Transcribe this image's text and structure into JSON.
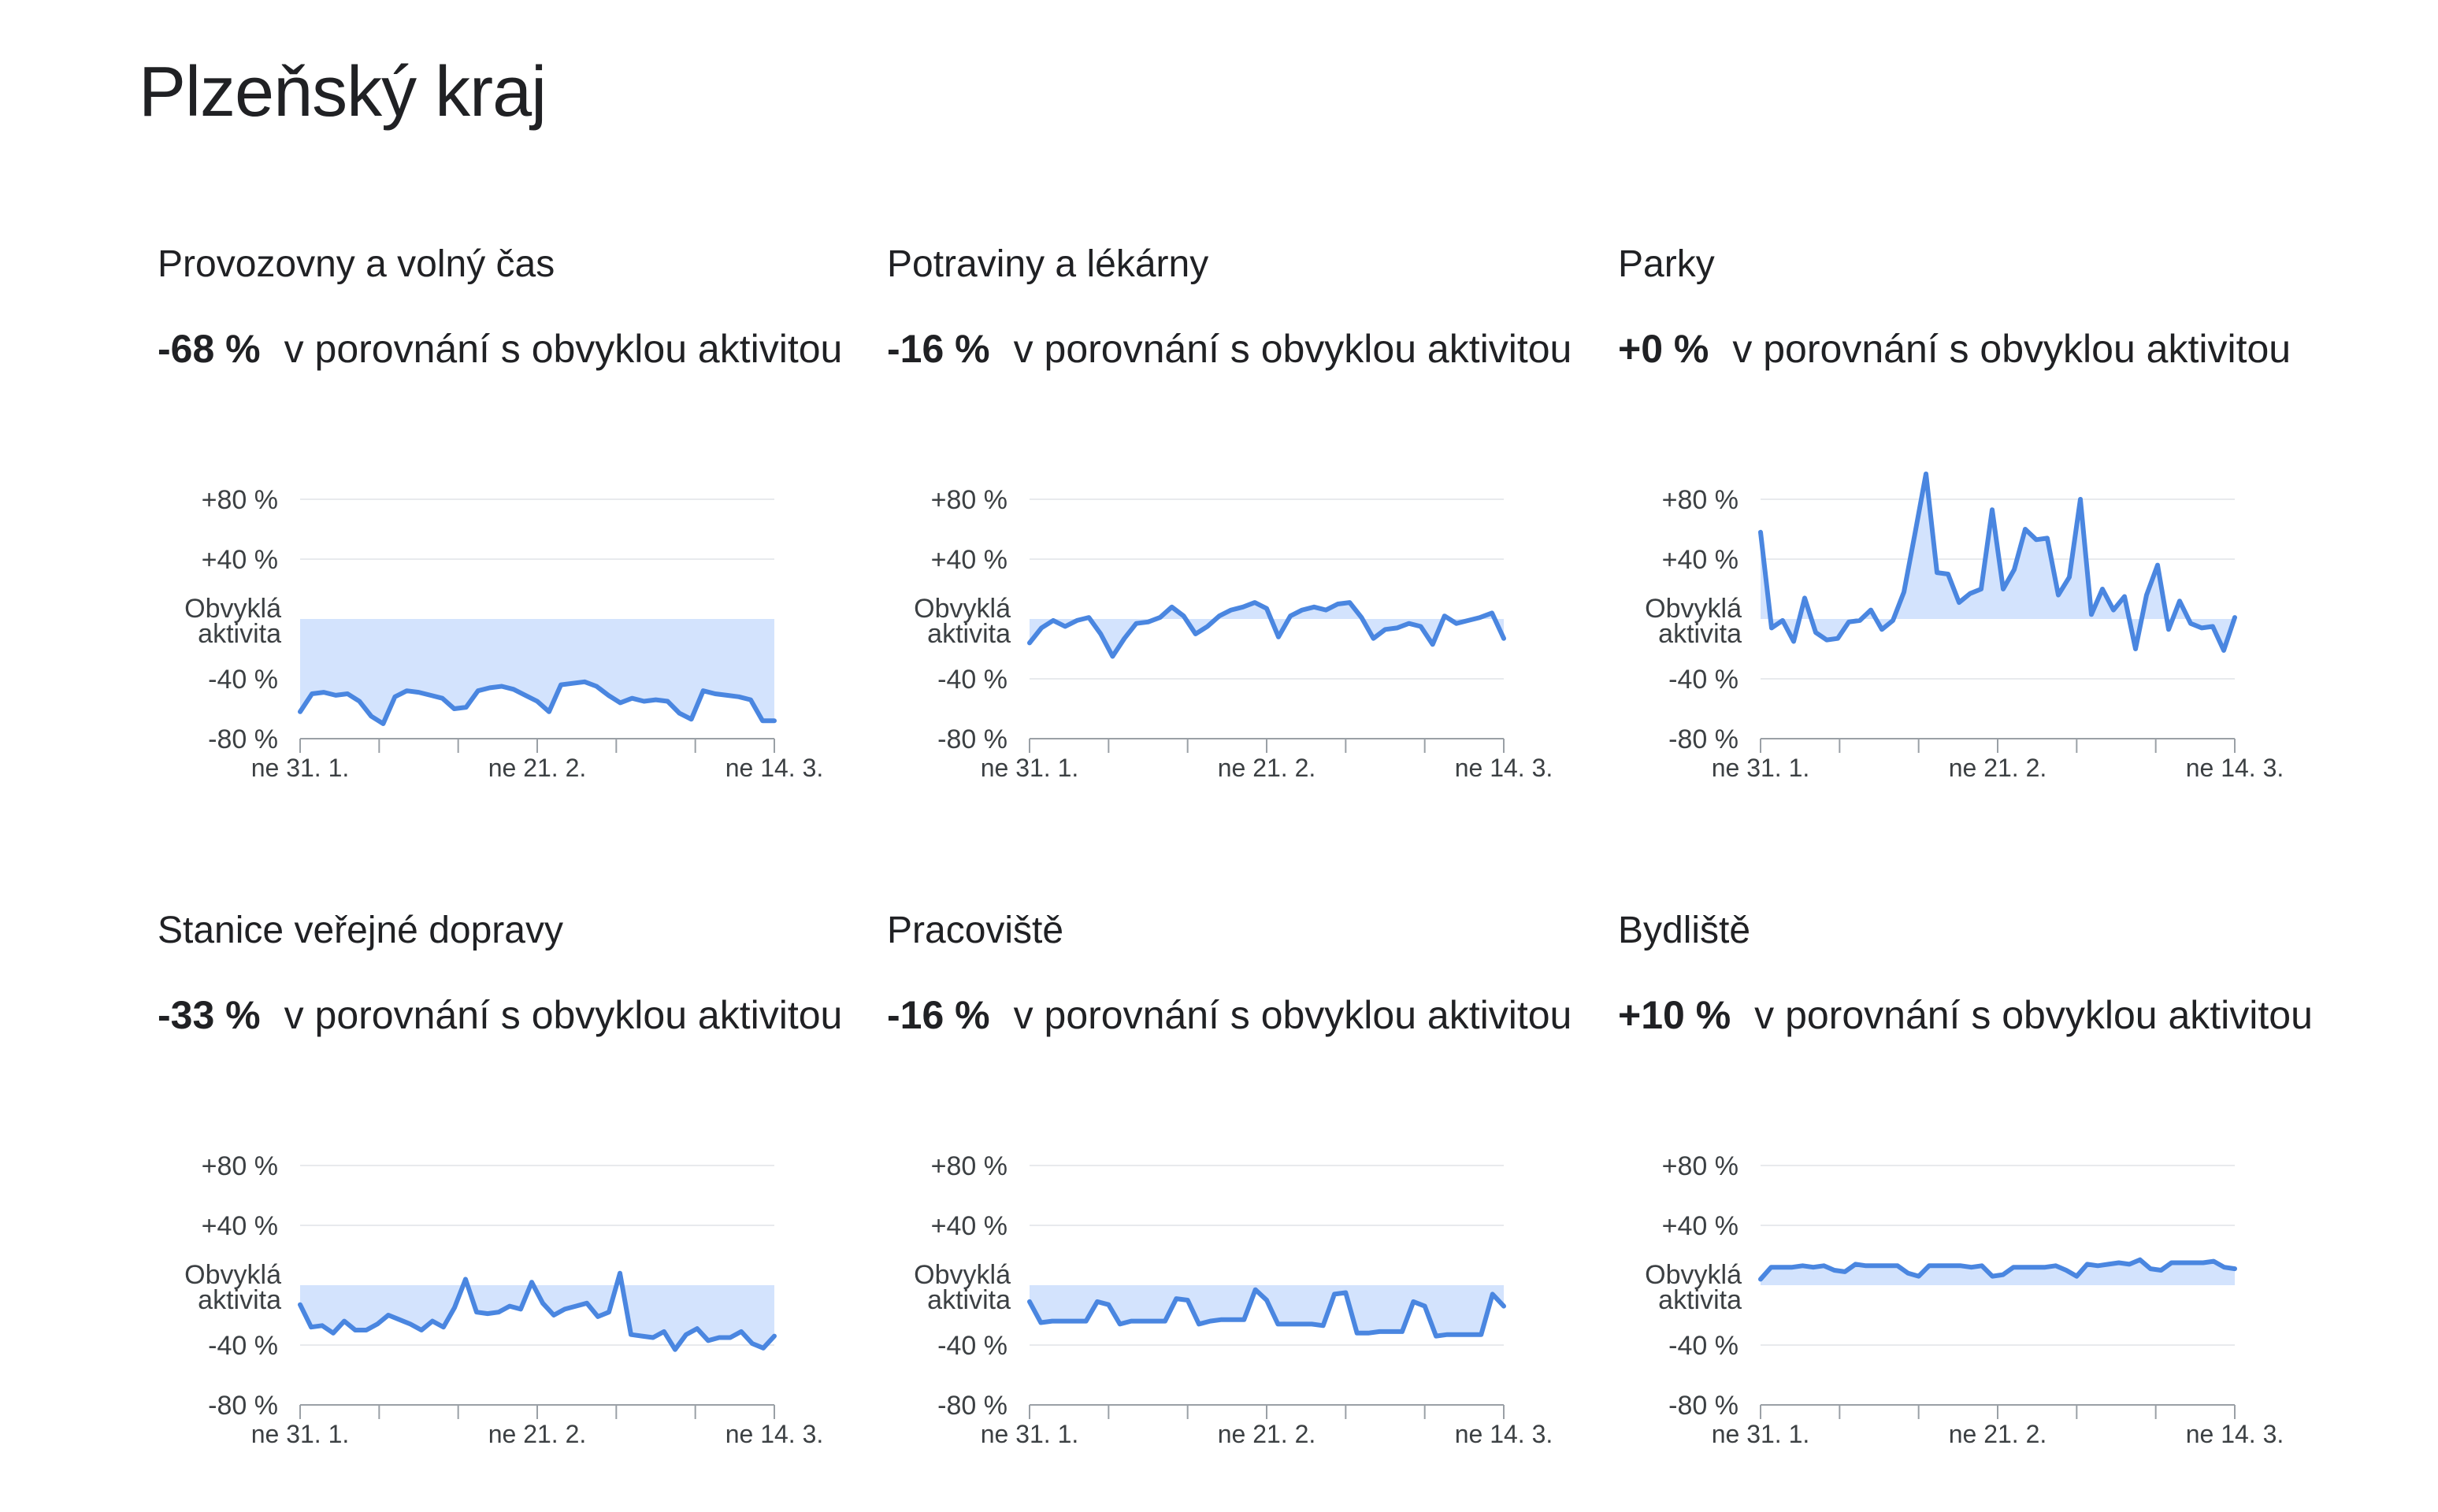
{
  "title": "Plzeňský kraj",
  "comparison_text": "v porovnání s obvyklou aktivitou",
  "colors": {
    "line": "#4a86e0",
    "band": "#d3e3fd",
    "grid": "#e8eaed",
    "axis": "#9aa0a6"
  },
  "y_axis": {
    "ticks": [
      "+80 %",
      "+40 %",
      "Obvyklá aktivita",
      "-40 %",
      "-80 %"
    ],
    "baseline_label": [
      "Obvyklá",
      "aktivita"
    ]
  },
  "x_axis": {
    "ticks": [
      "ne 31. 1.",
      "ne 21. 2.",
      "ne 14. 3."
    ]
  },
  "chart_data": [
    {
      "type": "line",
      "title": "Provozovny a volný čas",
      "summary_value": "-68 %",
      "ylim": [
        -80,
        80
      ],
      "x_range": [
        "2021-01-31",
        "2021-03-14"
      ],
      "values": [
        -62,
        -50,
        -49,
        -51,
        -50,
        -55,
        -65,
        -70,
        -52,
        -48,
        -49,
        -51,
        -53,
        -60,
        -59,
        -48,
        -46,
        -45,
        -47,
        -51,
        -55,
        -62,
        -44,
        -43,
        -42,
        -45,
        -51,
        -56,
        -53,
        -55,
        -54,
        -55,
        -63,
        -67,
        -48,
        -50,
        -51,
        -52,
        -54,
        -68,
        -68
      ]
    },
    {
      "type": "line",
      "title": "Potraviny a lékárny",
      "summary_value": "-16 %",
      "ylim": [
        -80,
        80
      ],
      "x_range": [
        "2021-01-31",
        "2021-03-14"
      ],
      "values": [
        -16,
        -6,
        -1,
        -5,
        -1,
        1,
        -10,
        -25,
        -13,
        -3,
        -2,
        1,
        8,
        2,
        -10,
        -5,
        2,
        6,
        8,
        11,
        7,
        -12,
        2,
        6,
        8,
        6,
        10,
        11,
        1,
        -13,
        -7,
        -6,
        -3,
        -5,
        -17,
        2,
        -3,
        -1,
        1,
        4,
        -13
      ]
    },
    {
      "type": "line",
      "title": "Parky",
      "summary_value": "+0 %",
      "ylim": [
        -80,
        80
      ],
      "x_range": [
        "2021-01-31",
        "2021-03-14"
      ],
      "values": [
        58,
        -6,
        -1,
        -15,
        14,
        -9,
        -14,
        -13,
        -2,
        -1,
        6,
        -7,
        -1,
        18,
        57,
        97,
        31,
        30,
        11,
        17,
        20,
        73,
        20,
        33,
        60,
        53,
        54,
        16,
        28,
        80,
        3,
        20,
        6,
        15,
        -20,
        16,
        36,
        -7,
        12,
        -3,
        -6,
        -5,
        -21,
        1
      ]
    },
    {
      "type": "line",
      "title": "Stanice veřejné dopravy",
      "summary_value": "-33 %",
      "ylim": [
        -80,
        80
      ],
      "x_range": [
        "2021-01-31",
        "2021-03-14"
      ],
      "values": [
        -13,
        -28,
        -27,
        -32,
        -24,
        -30,
        -30,
        -26,
        -20,
        -23,
        -26,
        -30,
        -24,
        -28,
        -15,
        4,
        -18,
        -19,
        -18,
        -14,
        -16,
        2,
        -12,
        -20,
        -16,
        -14,
        -12,
        -21,
        -18,
        8,
        -33,
        -34,
        -35,
        -31,
        -43,
        -33,
        -29,
        -37,
        -35,
        -35,
        -31,
        -39,
        -42,
        -34
      ]
    },
    {
      "type": "line",
      "title": "Pracoviště",
      "summary_value": "-16 %",
      "ylim": [
        -80,
        80
      ],
      "x_range": [
        "2021-01-31",
        "2021-03-14"
      ],
      "values": [
        -11,
        -25,
        -24,
        -24,
        -24,
        -24,
        -11,
        -13,
        -26,
        -24,
        -24,
        -24,
        -24,
        -9,
        -10,
        -26,
        -24,
        -23,
        -23,
        -23,
        -3,
        -10,
        -26,
        -26,
        -26,
        -26,
        -27,
        -6,
        -5,
        -32,
        -32,
        -31,
        -31,
        -31,
        -11,
        -14,
        -34,
        -33,
        -33,
        -33,
        -33,
        -6,
        -14
      ]
    },
    {
      "type": "line",
      "title": "Bydliště",
      "summary_value": "+10 %",
      "ylim": [
        -80,
        80
      ],
      "x_range": [
        "2021-01-31",
        "2021-03-14"
      ],
      "values": [
        4,
        12,
        12,
        12,
        13,
        12,
        13,
        10,
        9,
        14,
        13,
        13,
        13,
        13,
        8,
        6,
        13,
        13,
        13,
        13,
        12,
        13,
        6,
        7,
        12,
        12,
        12,
        12,
        13,
        10,
        6,
        14,
        13,
        14,
        15,
        14,
        17,
        11,
        10,
        15,
        15,
        15,
        15,
        16,
        12,
        11
      ]
    }
  ]
}
